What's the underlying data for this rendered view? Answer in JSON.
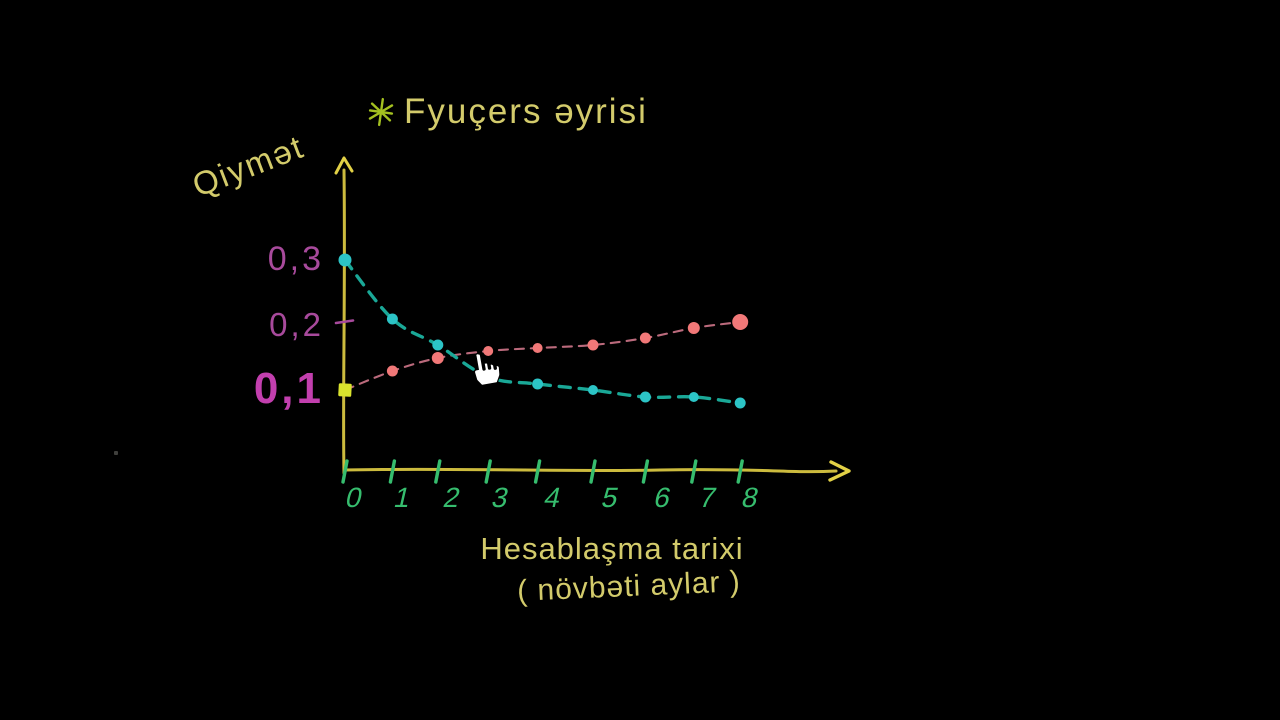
{
  "title": {
    "text": "Fyuçers əyrisi",
    "icon": "asterisk-star"
  },
  "colors": {
    "background": "#000000",
    "text_yellow": "#d3cb6b",
    "axis_yellow": "#ccbb3e",
    "arrow_yellow": "#e2d146",
    "tick_green": "#36bd6e",
    "magenta_dim": "#a84a9c",
    "magenta_bright": "#c23fae",
    "teal_dot": "#2cc4c6",
    "teal_line": "#1aa897",
    "pink_dot": "#f17878",
    "pink_line": "#cf7689",
    "start_square": "#d9e32d",
    "star_green": "#a4c120",
    "cursor_fill": "#ffffff"
  },
  "chart_data": {
    "type": "line",
    "title": "Fyuçers əyrisi",
    "ylabel": "Qiymət",
    "xlabel": "Hesablaşma tarixi",
    "xlabel_sub": "( növbəti aylar )",
    "x": [
      0,
      1,
      2,
      3,
      4,
      5,
      6,
      7,
      8
    ],
    "x_tick_labels": [
      "0",
      "1",
      "2",
      "3",
      "4",
      "5",
      "6",
      "7",
      "8"
    ],
    "y_ticks": [
      {
        "label": "0,3",
        "value": 0.3
      },
      {
        "label": "0,2",
        "value": 0.2
      },
      {
        "label": "0,1",
        "value": 0.1
      }
    ],
    "xlim": [
      0,
      9.8
    ],
    "ylim": [
      0,
      0.36
    ],
    "grid": false,
    "legend": "none",
    "series": [
      {
        "name": "teal-declining-curve",
        "color": "#2cc4c6",
        "line_color": "#1aa897",
        "style": "dashed",
        "marker": "circle",
        "values": [
          0.3,
          0.21,
          0.17,
          0.12,
          0.11,
          0.1,
          0.09,
          0.09,
          0.08
        ]
      },
      {
        "name": "pink-rising-curve",
        "color": "#f17878",
        "line_color": "#cf7689",
        "style": "dashed",
        "marker": "circle",
        "first_marker": "yellow-square",
        "values": [
          0.1,
          0.13,
          0.15,
          0.16,
          0.165,
          0.17,
          0.18,
          0.195,
          0.205
        ]
      }
    ]
  }
}
